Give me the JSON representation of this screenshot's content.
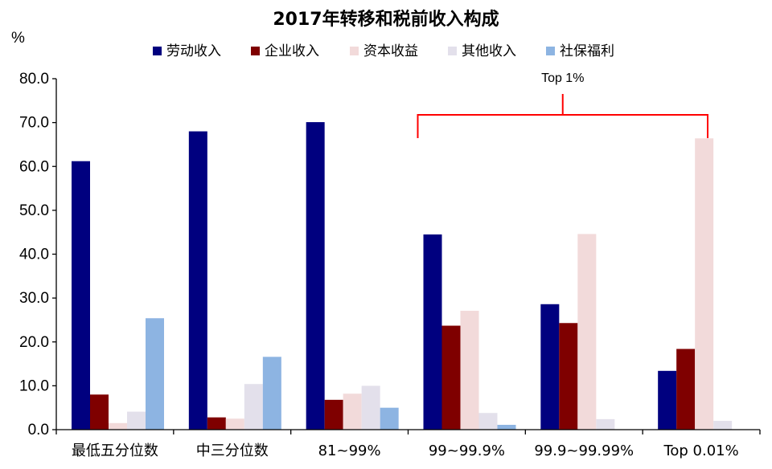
{
  "chart_data": {
    "type": "bar",
    "title": "2017年转移和税前收入构成",
    "ylabel": "%",
    "xlabel": "",
    "ylim": [
      0,
      80
    ],
    "yticks": [
      "0.0",
      "10.0",
      "20.0",
      "30.0",
      "40.0",
      "50.0",
      "60.0",
      "70.0",
      "80.0"
    ],
    "categories": [
      "最低五分位数",
      "中三分位数",
      "81~99%",
      "99~99.9%",
      "99.9~99.99%",
      "Top 0.01%"
    ],
    "series": [
      {
        "name": "劳动收入",
        "color": "#00007F",
        "values": [
          61.2,
          68.0,
          70.1,
          44.5,
          28.6,
          13.4
        ]
      },
      {
        "name": "企业收入",
        "color": "#7F0000",
        "values": [
          8.0,
          2.8,
          6.8,
          23.7,
          24.3,
          18.4
        ]
      },
      {
        "name": "资本收益",
        "color": "#F2DADA",
        "values": [
          1.5,
          2.5,
          8.2,
          27.1,
          44.6,
          66.4
        ]
      },
      {
        "name": "其他收入",
        "color": "#E3E0EB",
        "values": [
          4.1,
          10.4,
          10.0,
          3.8,
          2.4,
          2.0
        ]
      },
      {
        "name": "社保福利",
        "color": "#8DB4E2",
        "values": [
          25.4,
          16.6,
          5.0,
          1.1,
          0.0,
          0.0
        ]
      }
    ],
    "grid": false,
    "legend": "top",
    "annotation": {
      "label": "Top 1%",
      "color": "#FF0000",
      "spans_categories": [
        "99~99.9%",
        "99.9~99.99%",
        "Top 0.01%"
      ]
    }
  }
}
